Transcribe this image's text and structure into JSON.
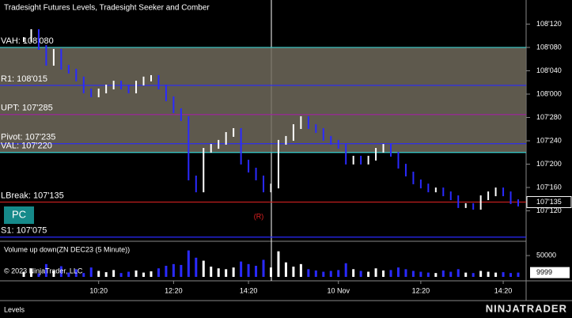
{
  "title": "Tradesight Futures Levels, Tradesight Seeker and Comber",
  "chart_data": {
    "type": "price",
    "xlim": [
      0,
      66
    ],
    "xticks": [
      {
        "value": 10,
        "label": "10:20"
      },
      {
        "value": 20,
        "label": "12:20"
      },
      {
        "value": 30,
        "label": "14:20"
      },
      {
        "value": 42,
        "label": "10 Nov"
      },
      {
        "value": 53,
        "label": "12:20"
      },
      {
        "value": 64,
        "label": "14:20"
      }
    ],
    "ylim": [
      107.212,
      108.504
    ],
    "yticks": [
      {
        "value": 108.375,
        "label": "108'120"
      },
      {
        "value": 108.25,
        "label": "108'080"
      },
      {
        "value": 108.125,
        "label": "108'040"
      },
      {
        "value": 108.0,
        "label": "108'000"
      },
      {
        "value": 107.875,
        "label": "107'280"
      },
      {
        "value": 107.75,
        "label": "107'240"
      },
      {
        "value": 107.625,
        "label": "107'200"
      },
      {
        "value": 107.5,
        "label": "107'160"
      },
      {
        "value": 107.375,
        "label": "107'120"
      }
    ],
    "up_color": "#ffffff",
    "down_color": "#2a2aff",
    "values": [
      108.292,
      108.335,
      108.25,
      108.165,
      108.229,
      108.144,
      108.123,
      108.081,
      108.017,
      107.996,
      108.017,
      108.038,
      108.059,
      108.038,
      108.017,
      108.059,
      108.081,
      108.089,
      108.038,
      107.975,
      107.911,
      107.869,
      107.551,
      107.487,
      107.699,
      107.72,
      107.742,
      107.784,
      107.805,
      107.636,
      107.593,
      107.551,
      107.487,
      107.508,
      107.742,
      107.763,
      107.826,
      107.869,
      107.826,
      107.805,
      107.763,
      107.742,
      107.72,
      107.636,
      107.657,
      107.636,
      107.657,
      107.699,
      107.72,
      107.678,
      107.614,
      107.572,
      107.53,
      107.508,
      107.487,
      107.487,
      107.466,
      107.445,
      107.403,
      107.403,
      107.394,
      107.445,
      107.466,
      107.487,
      107.466,
      107.424,
      107.411
    ],
    "levels": [
      {
        "label": "VAH: 108'080",
        "value": 108.25,
        "color": "#39d0d0"
      },
      {
        "label": "R1: 108'015",
        "value": 108.046875,
        "color": "#2a2aff"
      },
      {
        "label": "UPT: 107'285",
        "value": 107.890625,
        "color": "#a020a0"
      },
      {
        "label": "Pivot: 107'235",
        "value": 107.734375,
        "color": "#2a2aff"
      },
      {
        "label": "VAL: 107'220",
        "value": 107.6875,
        "color": "#39d0d0"
      },
      {
        "label": "LBreak: 107'135",
        "value": 107.421875,
        "color": "#d02020"
      },
      {
        "label": "S1: 107'075",
        "value": 107.234375,
        "color": "#2a2aff"
      }
    ],
    "last_price": {
      "value": 107.421875,
      "label": "107'135"
    },
    "button": "PC",
    "annotation": "(R)"
  },
  "volume": {
    "label": "Volume up down(ZN DEC23 (5 Minute))",
    "ylim": [
      0,
      78000
    ],
    "yticks": [
      50000
    ],
    "values": [
      12000,
      20000,
      8000,
      30000,
      15000,
      25000,
      10000,
      18000,
      9000,
      22000,
      14000,
      11000,
      16000,
      9000,
      12000,
      15000,
      10000,
      13000,
      20000,
      26000,
      30000,
      28000,
      62000,
      45000,
      38000,
      24000,
      20000,
      18000,
      22000,
      36000,
      30000,
      26000,
      40000,
      22000,
      60000,
      34000,
      24000,
      30000,
      18000,
      15000,
      12000,
      14000,
      16000,
      32000,
      18000,
      14000,
      12000,
      20000,
      15000,
      16000,
      22000,
      18000,
      14000,
      12000,
      10000,
      9000,
      15000,
      12000,
      18000,
      10000,
      9000,
      14000,
      12000,
      10000,
      11000,
      9000,
      9999
    ],
    "last": 9999
  },
  "copyright": "© 2023 NinjaTrader, LLC",
  "tab": "Levels",
  "logo": "NINJATRADER"
}
